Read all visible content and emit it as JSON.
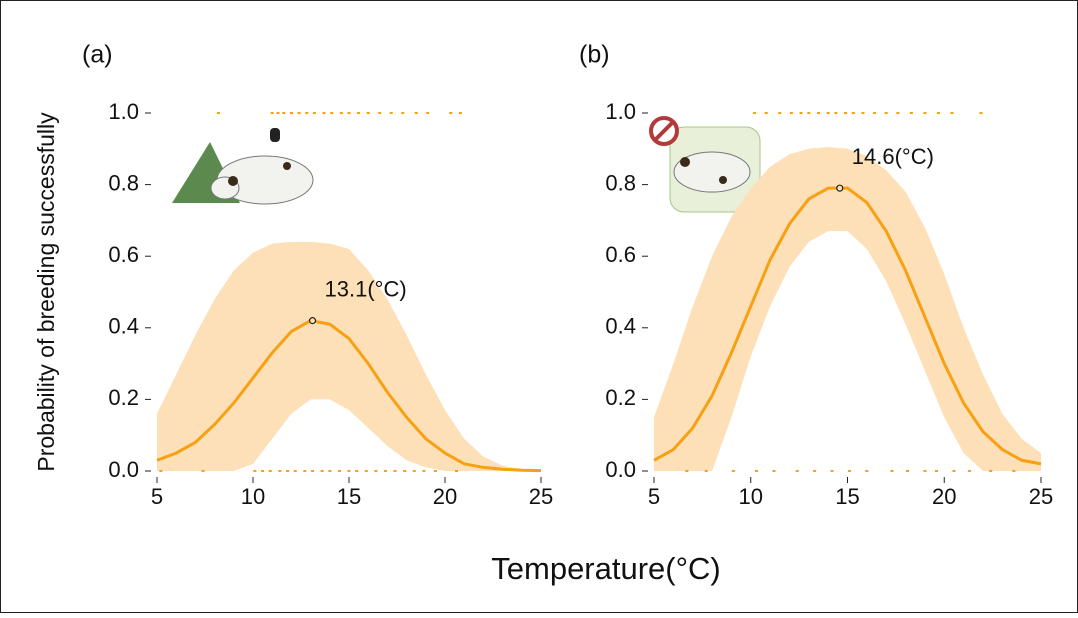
{
  "figure": {
    "y_label": "Probability of breeding successfully",
    "x_label": "Temperature(°C)"
  },
  "chart_data": [
    {
      "type": "line",
      "panel_label": "(a)",
      "x": [
        5,
        6,
        7,
        8,
        9,
        10,
        11,
        12,
        13,
        14,
        15,
        16,
        17,
        18,
        19,
        20,
        21,
        22,
        23,
        24,
        25
      ],
      "values": [
        0.03,
        0.05,
        0.08,
        0.13,
        0.19,
        0.26,
        0.33,
        0.39,
        0.42,
        0.41,
        0.37,
        0.3,
        0.22,
        0.15,
        0.09,
        0.05,
        0.02,
        0.01,
        0.005,
        0.002,
        0.001
      ],
      "upper": [
        0.16,
        0.27,
        0.38,
        0.48,
        0.56,
        0.61,
        0.635,
        0.64,
        0.64,
        0.635,
        0.62,
        0.56,
        0.48,
        0.38,
        0.27,
        0.17,
        0.09,
        0.04,
        0.015,
        0.005,
        0.002
      ],
      "lower": [
        0,
        0,
        0,
        0,
        0,
        0.02,
        0.09,
        0.16,
        0.2,
        0.2,
        0.17,
        0.12,
        0.07,
        0.03,
        0.01,
        0,
        0,
        0,
        0,
        0,
        0
      ],
      "color": "#f7a012",
      "band_color": "#fde0b8",
      "peak": {
        "x": 13.1,
        "y": 0.42,
        "label": "13.1(°C)"
      },
      "success_x": [
        8.2,
        11.0,
        11.3,
        11.6,
        12.0,
        12.4,
        12.8,
        13.2,
        13.7,
        14.1,
        14.6,
        15.0,
        15.5,
        16.0,
        16.6,
        17.2,
        17.8,
        18.5,
        19.1,
        20.3,
        20.8
      ],
      "failure_x": [
        5.2,
        7.4,
        10.1,
        10.5,
        10.9,
        11.4,
        11.8,
        12.2,
        12.7,
        13.1,
        13.6,
        14.0,
        14.5,
        15.0,
        15.4,
        15.9,
        16.4,
        16.9,
        17.4,
        17.9,
        18.4,
        18.9,
        19.5,
        20.6
      ],
      "xlim": [
        5,
        25
      ],
      "ylim": [
        0,
        1
      ],
      "xticks": [
        5,
        10,
        15,
        20,
        25
      ],
      "yticks": [
        {
          "value": 0,
          "label": "0.0"
        },
        0.2,
        0.4,
        0.6,
        0.8,
        {
          "value": 1,
          "label": "1.0"
        }
      ]
    },
    {
      "type": "line",
      "panel_label": "(b)",
      "x": [
        5,
        6,
        7,
        8,
        9,
        10,
        11,
        12,
        13,
        14,
        15,
        16,
        17,
        18,
        19,
        20,
        21,
        22,
        23,
        24,
        25
      ],
      "values": [
        0.03,
        0.06,
        0.12,
        0.21,
        0.33,
        0.46,
        0.59,
        0.69,
        0.76,
        0.79,
        0.79,
        0.75,
        0.67,
        0.56,
        0.43,
        0.3,
        0.19,
        0.11,
        0.06,
        0.03,
        0.02
      ],
      "upper": [
        0.15,
        0.3,
        0.46,
        0.6,
        0.71,
        0.79,
        0.85,
        0.885,
        0.9,
        0.905,
        0.9,
        0.88,
        0.84,
        0.78,
        0.68,
        0.55,
        0.4,
        0.27,
        0.16,
        0.09,
        0.05
      ],
      "lower": [
        0,
        0,
        0,
        0,
        0.15,
        0.32,
        0.46,
        0.57,
        0.64,
        0.67,
        0.67,
        0.62,
        0.53,
        0.41,
        0.28,
        0.15,
        0.05,
        0,
        0,
        0,
        0
      ],
      "color": "#f7a012",
      "band_color": "#fde0b8",
      "peak": {
        "x": 14.6,
        "y": 0.79,
        "label": "14.6(°C)"
      },
      "success_x": [
        10.2,
        10.8,
        11.5,
        12.1,
        12.6,
        13.0,
        13.5,
        14.0,
        14.4,
        14.9,
        15.3,
        15.8,
        16.4,
        17.0,
        17.6,
        18.3,
        19.0,
        19.7,
        20.4,
        21.9
      ],
      "failure_x": [
        6.7,
        7.7,
        9.1,
        10.3,
        11.2,
        12.4,
        13.3,
        14.2,
        15.1,
        16.0,
        17.3,
        18.1,
        19.0,
        19.6,
        20.5,
        21.3,
        22.4,
        23.6
      ],
      "xlim": [
        5,
        25
      ],
      "ylim": [
        0,
        1
      ],
      "xticks": [
        5,
        10,
        15,
        20,
        25
      ],
      "yticks": [
        {
          "value": 0,
          "label": "0.0"
        },
        0.2,
        0.4,
        0.6,
        0.8,
        {
          "value": 1,
          "label": "1.0"
        }
      ]
    }
  ]
}
